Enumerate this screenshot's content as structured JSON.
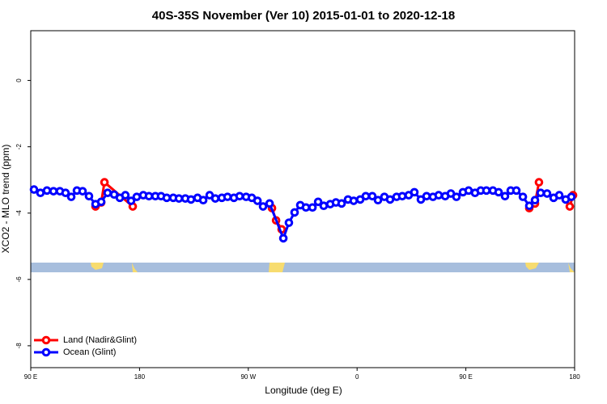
{
  "chart_data": {
    "type": "line",
    "title": "40S-35S November (Ver 10)   2015-01-01 to 2020-12-18",
    "x_label": "Longitude (deg E)",
    "y_label": "XCO2 - MLO trend (ppm)",
    "xlim": [
      90,
      540
    ],
    "ylim": [
      -8.66,
      1.5
    ],
    "xticks": [
      {
        "value": 90,
        "label": "90 E"
      },
      180,
      {
        "value": 270,
        "label": "90 W"
      },
      {
        "value": 360,
        "label": "0"
      },
      {
        "value": 450,
        "label": "90 E"
      },
      {
        "value": 540,
        "label": "180"
      }
    ],
    "yticks": [
      0,
      -2,
      -4,
      -6,
      -8
    ],
    "legend": "bottom-left",
    "series": [
      {
        "name": "Land (Nadir&Glint)",
        "color": "#ff0000",
        "x": [
          143.6,
          148.3,
          151,
          174.4,
          null,
          289.6,
          293,
          297.6,
          null,
          502.5,
          507.2,
          510.5,
          null,
          536,
          538.7
        ],
        "values": [
          -3.8,
          -3.68,
          -3.07,
          -3.8,
          null,
          -3.85,
          -4.22,
          -4.49,
          null,
          -3.85,
          -3.71,
          -3.07,
          null,
          -3.8,
          -3.46
        ]
      },
      {
        "name": "Ocean (Glint)",
        "color": "#0000ff",
        "x": [
          92.7,
          98,
          103.4,
          108.8,
          114.1,
          118.8,
          123.5,
          128.2,
          132.9,
          138.2,
          143.6,
          148.3,
          153.6,
          159,
          163.7,
          168.3,
          173,
          177.7,
          183.1,
          187.8,
          193.1,
          197.8,
          202.5,
          207.9,
          212.6,
          217.9,
          222.6,
          228,
          232.7,
          238,
          242.7,
          248.1,
          252.8,
          258.1,
          262.8,
          268.2,
          272.9,
          277.6,
          282.2,
          287.6,
          299,
          303.6,
          308.3,
          313,
          317.7,
          323.1,
          327.8,
          332.4,
          337.8,
          342.5,
          347.2,
          352.5,
          357.2,
          362.6,
          367.2,
          372.6,
          377.3,
          382.6,
          387.3,
          392.7,
          397.4,
          402.7,
          407.4,
          412.8,
          417.5,
          422.8,
          427.5,
          432.9,
          437.6,
          442.2,
          447.6,
          452.3,
          457.6,
          462.3,
          467,
          472.4,
          477.1,
          482.4,
          487.1,
          491.8,
          497.2,
          502.5,
          507.2,
          511.9,
          517.2,
          522.6,
          527.3,
          532.6,
          537.3
        ],
        "values": [
          -3.29,
          -3.39,
          -3.32,
          -3.34,
          -3.34,
          -3.39,
          -3.51,
          -3.32,
          -3.34,
          -3.49,
          -3.73,
          -3.66,
          -3.39,
          -3.44,
          -3.54,
          -3.46,
          -3.63,
          -3.51,
          -3.46,
          -3.49,
          -3.49,
          -3.49,
          -3.54,
          -3.54,
          -3.56,
          -3.56,
          -3.59,
          -3.54,
          -3.61,
          -3.46,
          -3.56,
          -3.54,
          -3.51,
          -3.54,
          -3.49,
          -3.51,
          -3.54,
          -3.63,
          -3.8,
          -3.71,
          -4.76,
          -4.29,
          -3.98,
          -3.76,
          -3.83,
          -3.83,
          -3.66,
          -3.78,
          -3.73,
          -3.68,
          -3.71,
          -3.59,
          -3.63,
          -3.59,
          -3.49,
          -3.49,
          -3.61,
          -3.51,
          -3.59,
          -3.51,
          -3.49,
          -3.46,
          -3.37,
          -3.59,
          -3.49,
          -3.51,
          -3.46,
          -3.49,
          -3.41,
          -3.51,
          -3.37,
          -3.32,
          -3.39,
          -3.32,
          -3.32,
          -3.32,
          -3.37,
          -3.49,
          -3.32,
          -3.32,
          -3.51,
          -3.78,
          -3.61,
          -3.39,
          -3.41,
          -3.54,
          -3.46,
          -3.59,
          -3.51
        ]
      }
    ]
  }
}
